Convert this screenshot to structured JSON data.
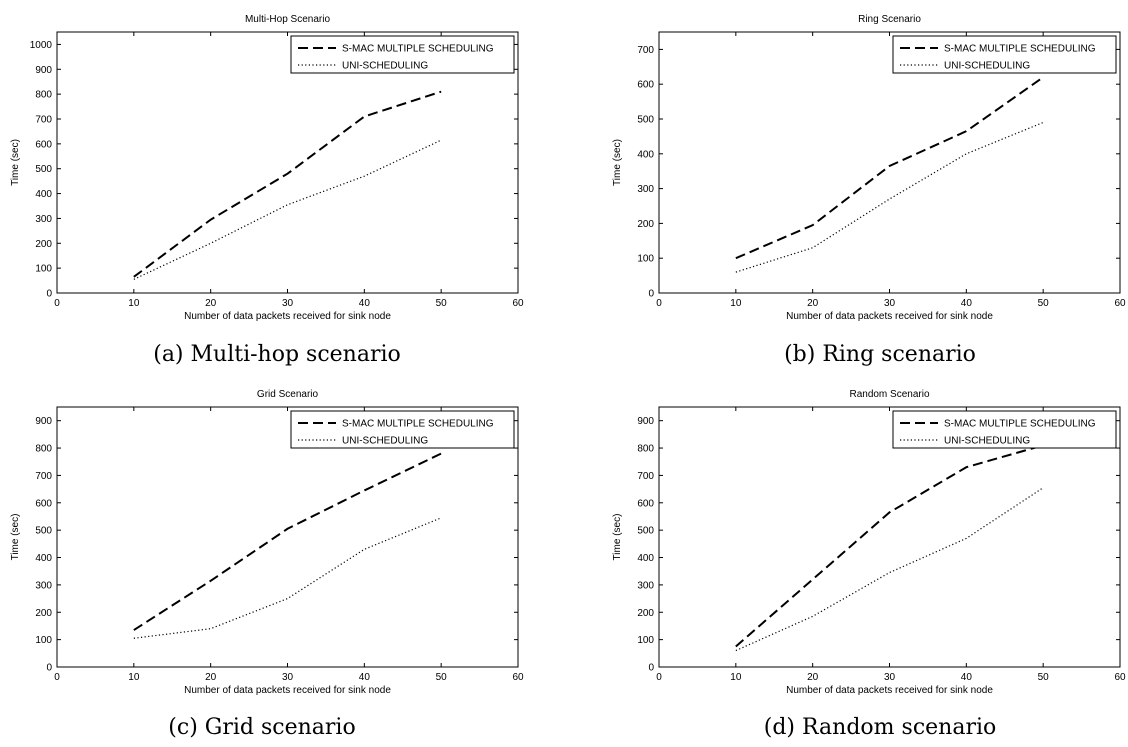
{
  "figure": {
    "captions": [
      "(a)  Multi-hop scenario",
      "(b)  Ring scenario",
      "(c)  Grid scenario",
      "(d)  Random scenario"
    ]
  },
  "chart_data": [
    {
      "type": "line",
      "title": "Multi-Hop Scenario",
      "xlabel": "Number of data packets received for sink node",
      "ylabel": "Time (sec)",
      "xlim": [
        0,
        60
      ],
      "ylim": [
        0,
        1050
      ],
      "xticks": [
        0,
        10,
        20,
        30,
        40,
        50,
        60
      ],
      "yticks": [
        0,
        100,
        200,
        300,
        400,
        500,
        600,
        700,
        800,
        900,
        1000
      ],
      "grid": false,
      "legend": "top-right",
      "x": [
        10,
        20,
        30,
        40,
        50
      ],
      "series": [
        {
          "name": "S-MAC MULTIPLE SCHEDULING",
          "style": "dashed",
          "values": [
            65,
            295,
            480,
            710,
            810
          ]
        },
        {
          "name": "UNI-SCHEDULING",
          "style": "dotted",
          "values": [
            55,
            200,
            355,
            470,
            615
          ]
        }
      ]
    },
    {
      "type": "line",
      "title": "Ring Scenario",
      "xlabel": "Number of data packets received for sink node",
      "ylabel": "Time (sec)",
      "xlim": [
        0,
        60
      ],
      "ylim": [
        0,
        750
      ],
      "xticks": [
        0,
        10,
        20,
        30,
        40,
        50,
        60
      ],
      "yticks": [
        0,
        100,
        200,
        300,
        400,
        500,
        600,
        700
      ],
      "grid": false,
      "legend": "top-right",
      "x": [
        10,
        20,
        30,
        40,
        50
      ],
      "series": [
        {
          "name": "S-MAC MULTIPLE SCHEDULING",
          "style": "dashed",
          "values": [
            100,
            195,
            365,
            465,
            620
          ]
        },
        {
          "name": "UNI-SCHEDULING",
          "style": "dotted",
          "values": [
            60,
            130,
            270,
            400,
            490
          ]
        }
      ]
    },
    {
      "type": "line",
      "title": "Grid Scenario",
      "xlabel": "Number of data packets received for sink node",
      "ylabel": "Time (sec)",
      "xlim": [
        0,
        60
      ],
      "ylim": [
        0,
        950
      ],
      "xticks": [
        0,
        10,
        20,
        30,
        40,
        50,
        60
      ],
      "yticks": [
        0,
        100,
        200,
        300,
        400,
        500,
        600,
        700,
        800,
        900
      ],
      "grid": false,
      "legend": "top-right",
      "x": [
        10,
        20,
        30,
        40,
        50
      ],
      "series": [
        {
          "name": "S-MAC MULTIPLE SCHEDULING",
          "style": "dashed",
          "values": [
            135,
            315,
            505,
            645,
            780
          ]
        },
        {
          "name": "UNI-SCHEDULING",
          "style": "dotted",
          "values": [
            105,
            140,
            250,
            430,
            545
          ]
        }
      ]
    },
    {
      "type": "line",
      "title": "Random Scenario",
      "xlabel": "Number of data packets received for sink node",
      "ylabel": "Time (sec)",
      "xlim": [
        0,
        60
      ],
      "ylim": [
        0,
        950
      ],
      "xticks": [
        0,
        10,
        20,
        30,
        40,
        50,
        60
      ],
      "yticks": [
        0,
        100,
        200,
        300,
        400,
        500,
        600,
        700,
        800,
        900
      ],
      "grid": false,
      "legend": "top-right",
      "x": [
        10,
        20,
        30,
        40,
        50
      ],
      "series": [
        {
          "name": "S-MAC MULTIPLE SCHEDULING",
          "style": "dashed",
          "values": [
            75,
            320,
            565,
            730,
            810
          ]
        },
        {
          "name": "UNI-SCHEDULING",
          "style": "dotted",
          "values": [
            60,
            185,
            345,
            470,
            655
          ]
        }
      ]
    }
  ]
}
